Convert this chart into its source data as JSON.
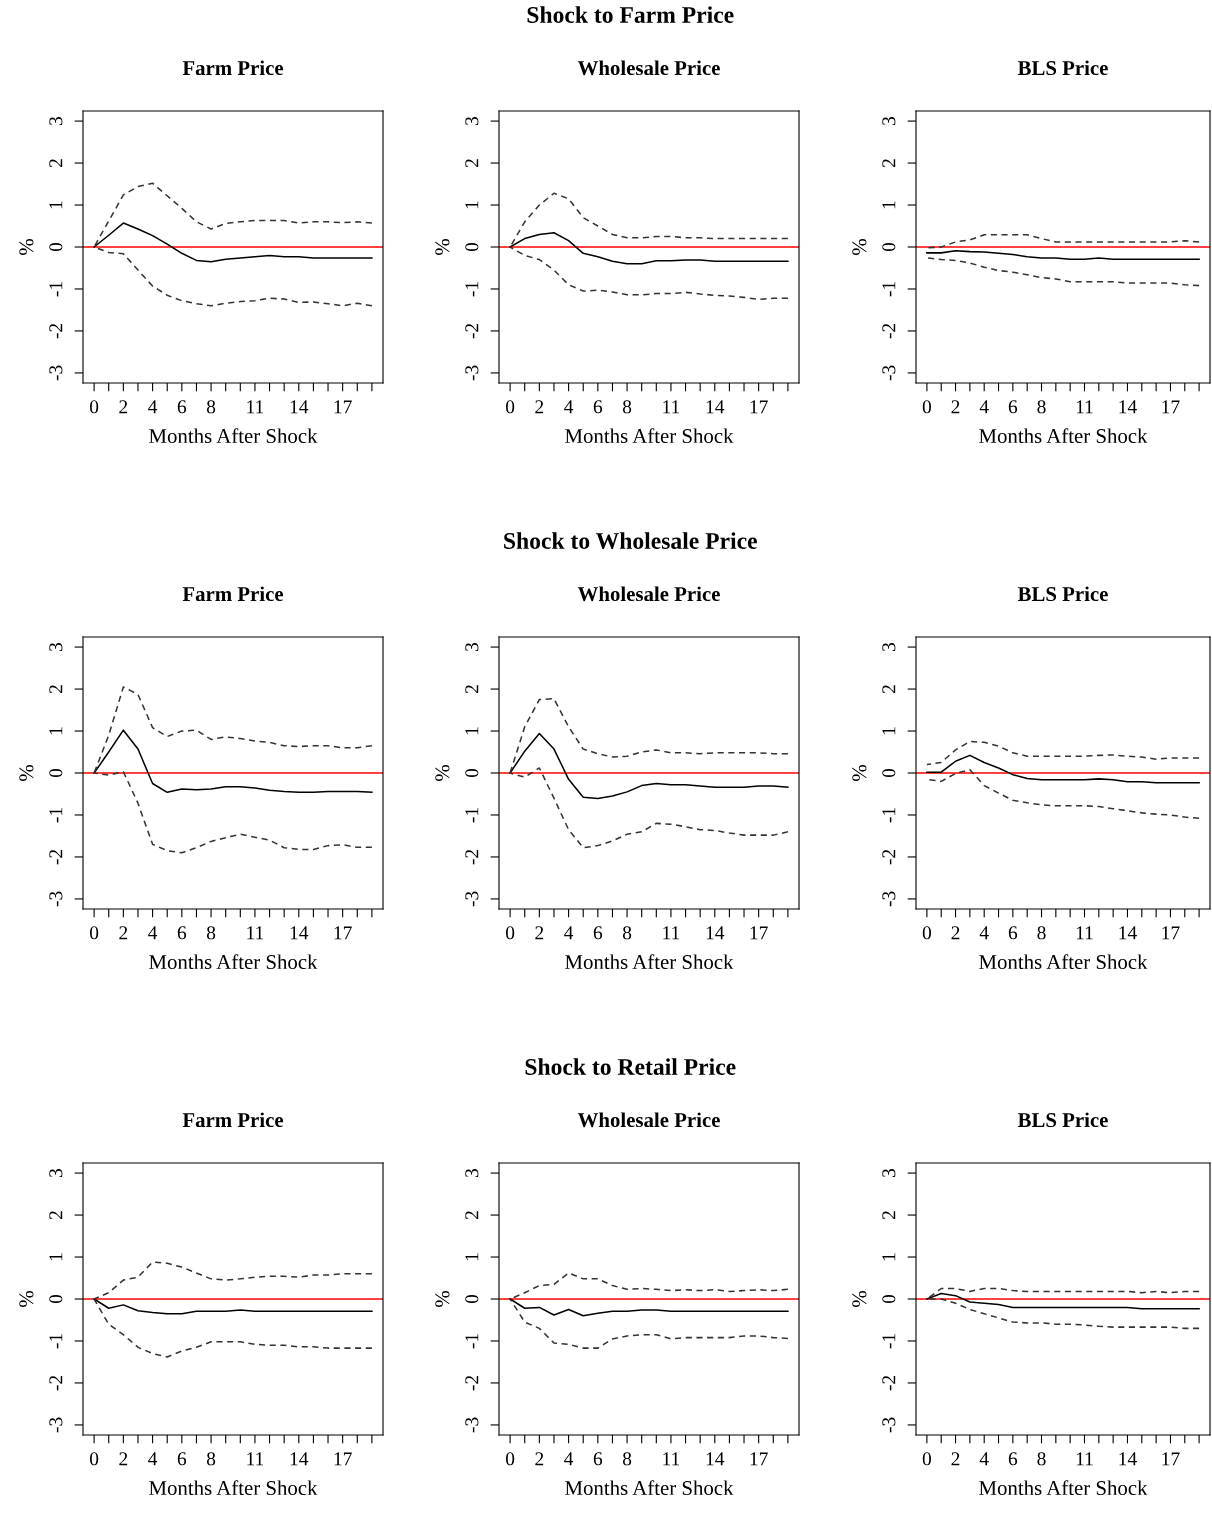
{
  "chart_data": [
    {
      "type": "line",
      "annotations": [
        "Shock to Farm Price"
      ],
      "title": "Farm Price",
      "xlabel": "Months After Shock",
      "ylabel": "%",
      "x": [
        0,
        1,
        2,
        3,
        4,
        5,
        6,
        7,
        8,
        9,
        10,
        11,
        12,
        13,
        14,
        15,
        16,
        17,
        18,
        19
      ],
      "xlim": [
        -0.76,
        19.76
      ],
      "ylim": [
        -3.24,
        3.24
      ],
      "xticks": [
        0,
        {
          "value": 1,
          "label": null
        },
        2,
        {
          "value": 3,
          "label": null
        },
        4,
        {
          "value": 5,
          "label": null
        },
        6,
        {
          "value": 7,
          "label": null
        },
        8,
        {
          "value": 9,
          "label": null
        },
        {
          "value": 10,
          "label": null
        },
        11,
        {
          "value": 12,
          "label": null
        },
        {
          "value": 13,
          "label": null
        },
        14,
        {
          "value": 15,
          "label": null
        },
        {
          "value": 16,
          "label": null
        },
        17,
        {
          "value": 18,
          "label": null
        },
        {
          "value": 19,
          "label": null
        }
      ],
      "yticks": [
        -3,
        -2,
        -1,
        0,
        1,
        2,
        3
      ],
      "ref_lines": [
        {
          "axis": "y",
          "value": 0,
          "color": "#ff0000"
        }
      ],
      "line_style": "solid",
      "series": [
        {
          "color": "#000000",
          "values": [
            0,
            0.28,
            0.57,
            0.43,
            0.27,
            0.07,
            -0.15,
            -0.32,
            -0.35,
            -0.29,
            -0.26,
            -0.23,
            -0.2,
            -0.23,
            -0.23,
            -0.26,
            -0.26,
            -0.26,
            -0.26,
            -0.26
          ]
        },
        {
          "color": "#333333",
          "line_style": "dashed",
          "values": [
            0,
            -0.13,
            -0.16,
            -0.55,
            -0.93,
            -1.15,
            -1.28,
            -1.35,
            -1.4,
            -1.34,
            -1.3,
            -1.28,
            -1.22,
            -1.24,
            -1.32,
            -1.31,
            -1.35,
            -1.4,
            -1.34,
            -1.4
          ]
        },
        {
          "color": "#333333",
          "line_style": "dashed",
          "values": [
            0,
            0.62,
            1.24,
            1.44,
            1.52,
            1.22,
            0.92,
            0.6,
            0.43,
            0.56,
            0.6,
            0.63,
            0.63,
            0.63,
            0.57,
            0.6,
            0.6,
            0.58,
            0.6,
            0.57
          ]
        }
      ]
    },
    {
      "type": "line",
      "title": "Wholesale Price",
      "xlabel": "Months After Shock",
      "ylabel": "%",
      "x": [
        0,
        1,
        2,
        3,
        4,
        5,
        6,
        7,
        8,
        9,
        10,
        11,
        12,
        13,
        14,
        15,
        16,
        17,
        18,
        19
      ],
      "xlim": [
        -0.76,
        19.76
      ],
      "ylim": [
        -3.24,
        3.24
      ],
      "xticks": [
        0,
        {
          "value": 1,
          "label": null
        },
        2,
        {
          "value": 3,
          "label": null
        },
        4,
        {
          "value": 5,
          "label": null
        },
        6,
        {
          "value": 7,
          "label": null
        },
        8,
        {
          "value": 9,
          "label": null
        },
        {
          "value": 10,
          "label": null
        },
        11,
        {
          "value": 12,
          "label": null
        },
        {
          "value": 13,
          "label": null
        },
        14,
        {
          "value": 15,
          "label": null
        },
        {
          "value": 16,
          "label": null
        },
        17,
        {
          "value": 18,
          "label": null
        },
        {
          "value": 19,
          "label": null
        }
      ],
      "yticks": [
        -3,
        -2,
        -1,
        0,
        1,
        2,
        3
      ],
      "ref_lines": [
        {
          "axis": "y",
          "value": 0,
          "color": "#ff0000"
        }
      ],
      "line_style": "solid",
      "series": [
        {
          "color": "#000000",
          "values": [
            0,
            0.2,
            0.3,
            0.34,
            0.15,
            -0.15,
            -0.23,
            -0.34,
            -0.4,
            -0.4,
            -0.33,
            -0.33,
            -0.31,
            -0.31,
            -0.34,
            -0.34,
            -0.34,
            -0.34,
            -0.34,
            -0.34
          ]
        },
        {
          "color": "#333333",
          "line_style": "dashed",
          "values": [
            0,
            -0.2,
            -0.3,
            -0.55,
            -0.9,
            -1.05,
            -1.03,
            -1.07,
            -1.14,
            -1.14,
            -1.11,
            -1.11,
            -1.08,
            -1.12,
            -1.15,
            -1.17,
            -1.2,
            -1.25,
            -1.22,
            -1.22
          ]
        },
        {
          "color": "#333333",
          "line_style": "dashed",
          "values": [
            0,
            0.6,
            1.0,
            1.28,
            1.15,
            0.7,
            0.5,
            0.3,
            0.22,
            0.22,
            0.25,
            0.25,
            0.22,
            0.22,
            0.2,
            0.2,
            0.2,
            0.2,
            0.2,
            0.2
          ]
        }
      ]
    },
    {
      "type": "line",
      "title": "BLS Price",
      "xlabel": "Months After Shock",
      "ylabel": "%",
      "x": [
        0,
        1,
        2,
        3,
        4,
        5,
        6,
        7,
        8,
        9,
        10,
        11,
        12,
        13,
        14,
        15,
        16,
        17,
        18,
        19
      ],
      "xlim": [
        -0.76,
        19.76
      ],
      "ylim": [
        -3.24,
        3.24
      ],
      "xticks": [
        0,
        {
          "value": 1,
          "label": null
        },
        2,
        {
          "value": 3,
          "label": null
        },
        4,
        {
          "value": 5,
          "label": null
        },
        6,
        {
          "value": 7,
          "label": null
        },
        8,
        {
          "value": 9,
          "label": null
        },
        {
          "value": 10,
          "label": null
        },
        11,
        {
          "value": 12,
          "label": null
        },
        {
          "value": 13,
          "label": null
        },
        14,
        {
          "value": 15,
          "label": null
        },
        {
          "value": 16,
          "label": null
        },
        17,
        {
          "value": 18,
          "label": null
        },
        {
          "value": 19,
          "label": null
        }
      ],
      "yticks": [
        -3,
        -2,
        -1,
        0,
        1,
        2,
        3
      ],
      "ref_lines": [
        {
          "axis": "y",
          "value": 0,
          "color": "#ff0000"
        }
      ],
      "line_style": "solid",
      "series": [
        {
          "color": "#000000",
          "values": [
            -0.14,
            -0.14,
            -0.09,
            -0.11,
            -0.12,
            -0.15,
            -0.18,
            -0.23,
            -0.26,
            -0.26,
            -0.29,
            -0.29,
            -0.26,
            -0.29,
            -0.29,
            -0.29,
            -0.29,
            -0.29,
            -0.29,
            -0.29
          ]
        },
        {
          "color": "#333333",
          "line_style": "dashed",
          "values": [
            -0.26,
            -0.3,
            -0.32,
            -0.38,
            -0.48,
            -0.56,
            -0.6,
            -0.66,
            -0.73,
            -0.76,
            -0.83,
            -0.83,
            -0.83,
            -0.83,
            -0.86,
            -0.86,
            -0.86,
            -0.86,
            -0.9,
            -0.92
          ]
        },
        {
          "color": "#333333",
          "line_style": "dashed",
          "values": [
            -0.02,
            0,
            0.12,
            0.17,
            0.29,
            0.29,
            0.29,
            0.29,
            0.2,
            0.12,
            0.12,
            0.12,
            0.12,
            0.12,
            0.12,
            0.12,
            0.12,
            0.12,
            0.15,
            0.12
          ]
        }
      ]
    },
    {
      "type": "line",
      "annotations": [
        "Shock to Wholesale Price"
      ],
      "title": "Farm Price",
      "xlabel": "Months After Shock",
      "ylabel": "%",
      "x": [
        0,
        1,
        2,
        3,
        4,
        5,
        6,
        7,
        8,
        9,
        10,
        11,
        12,
        13,
        14,
        15,
        16,
        17,
        18,
        19
      ],
      "xlim": [
        -0.76,
        19.76
      ],
      "ylim": [
        -3.24,
        3.24
      ],
      "xticks": [
        0,
        {
          "value": 1,
          "label": null
        },
        2,
        {
          "value": 3,
          "label": null
        },
        4,
        {
          "value": 5,
          "label": null
        },
        6,
        {
          "value": 7,
          "label": null
        },
        8,
        {
          "value": 9,
          "label": null
        },
        {
          "value": 10,
          "label": null
        },
        11,
        {
          "value": 12,
          "label": null
        },
        {
          "value": 13,
          "label": null
        },
        14,
        {
          "value": 15,
          "label": null
        },
        {
          "value": 16,
          "label": null
        },
        17,
        {
          "value": 18,
          "label": null
        },
        {
          "value": 19,
          "label": null
        }
      ],
      "yticks": [
        -3,
        -2,
        -1,
        0,
        1,
        2,
        3
      ],
      "ref_lines": [
        {
          "axis": "y",
          "value": 0,
          "color": "#ff0000"
        }
      ],
      "line_style": "solid",
      "series": [
        {
          "color": "#000000",
          "values": [
            0,
            0.5,
            1.02,
            0.57,
            -0.25,
            -0.46,
            -0.38,
            -0.4,
            -0.38,
            -0.33,
            -0.33,
            -0.36,
            -0.41,
            -0.44,
            -0.46,
            -0.46,
            -0.44,
            -0.44,
            -0.44,
            -0.46
          ]
        },
        {
          "color": "#333333",
          "line_style": "dashed",
          "values": [
            0,
            -0.05,
            0.03,
            -0.72,
            -1.7,
            -1.85,
            -1.9,
            -1.78,
            -1.63,
            -1.54,
            -1.46,
            -1.53,
            -1.6,
            -1.78,
            -1.82,
            -1.82,
            -1.73,
            -1.71,
            -1.77,
            -1.77
          ]
        },
        {
          "color": "#333333",
          "line_style": "dashed",
          "values": [
            0,
            0.9,
            2.05,
            1.87,
            1.08,
            0.87,
            1.0,
            1.02,
            0.8,
            0.86,
            0.82,
            0.76,
            0.73,
            0.65,
            0.63,
            0.65,
            0.65,
            0.6,
            0.6,
            0.65
          ]
        }
      ]
    },
    {
      "type": "line",
      "title": "Wholesale Price",
      "xlabel": "Months After Shock",
      "ylabel": "%",
      "x": [
        0,
        1,
        2,
        3,
        4,
        5,
        6,
        7,
        8,
        9,
        10,
        11,
        12,
        13,
        14,
        15,
        16,
        17,
        18,
        19
      ],
      "xlim": [
        -0.76,
        19.76
      ],
      "ylim": [
        -3.24,
        3.24
      ],
      "xticks": [
        0,
        {
          "value": 1,
          "label": null
        },
        2,
        {
          "value": 3,
          "label": null
        },
        4,
        {
          "value": 5,
          "label": null
        },
        6,
        {
          "value": 7,
          "label": null
        },
        8,
        {
          "value": 9,
          "label": null
        },
        {
          "value": 10,
          "label": null
        },
        11,
        {
          "value": 12,
          "label": null
        },
        {
          "value": 13,
          "label": null
        },
        14,
        {
          "value": 15,
          "label": null
        },
        {
          "value": 16,
          "label": null
        },
        17,
        {
          "value": 18,
          "label": null
        },
        {
          "value": 19,
          "label": null
        }
      ],
      "yticks": [
        -3,
        -2,
        -1,
        0,
        1,
        2,
        3
      ],
      "ref_lines": [
        {
          "axis": "y",
          "value": 0,
          "color": "#ff0000"
        }
      ],
      "line_style": "solid",
      "series": [
        {
          "color": "#000000",
          "values": [
            0,
            0.52,
            0.94,
            0.57,
            -0.15,
            -0.58,
            -0.61,
            -0.55,
            -0.45,
            -0.3,
            -0.25,
            -0.28,
            -0.28,
            -0.31,
            -0.34,
            -0.34,
            -0.34,
            -0.31,
            -0.31,
            -0.34
          ]
        },
        {
          "color": "#333333",
          "line_style": "dashed",
          "values": [
            0,
            -0.1,
            0.12,
            -0.6,
            -1.35,
            -1.78,
            -1.73,
            -1.62,
            -1.46,
            -1.4,
            -1.2,
            -1.22,
            -1.28,
            -1.35,
            -1.37,
            -1.43,
            -1.48,
            -1.48,
            -1.48,
            -1.4
          ]
        },
        {
          "color": "#333333",
          "line_style": "dashed",
          "values": [
            0,
            1.1,
            1.75,
            1.77,
            1.1,
            0.57,
            0.46,
            0.38,
            0.4,
            0.5,
            0.55,
            0.48,
            0.48,
            0.46,
            0.48,
            0.48,
            0.48,
            0.48,
            0.46,
            0.46
          ]
        }
      ]
    },
    {
      "type": "line",
      "title": "BLS Price",
      "xlabel": "Months After Shock",
      "ylabel": "%",
      "x": [
        0,
        1,
        2,
        3,
        4,
        5,
        6,
        7,
        8,
        9,
        10,
        11,
        12,
        13,
        14,
        15,
        16,
        17,
        18,
        19
      ],
      "xlim": [
        -0.76,
        19.76
      ],
      "ylim": [
        -3.24,
        3.24
      ],
      "xticks": [
        0,
        {
          "value": 1,
          "label": null
        },
        2,
        {
          "value": 3,
          "label": null
        },
        4,
        {
          "value": 5,
          "label": null
        },
        6,
        {
          "value": 7,
          "label": null
        },
        8,
        {
          "value": 9,
          "label": null
        },
        {
          "value": 10,
          "label": null
        },
        11,
        {
          "value": 12,
          "label": null
        },
        {
          "value": 13,
          "label": null
        },
        14,
        {
          "value": 15,
          "label": null
        },
        {
          "value": 16,
          "label": null
        },
        17,
        {
          "value": 18,
          "label": null
        },
        {
          "value": 19,
          "label": null
        }
      ],
      "yticks": [
        -3,
        -2,
        -1,
        0,
        1,
        2,
        3
      ],
      "ref_lines": [
        {
          "axis": "y",
          "value": 0,
          "color": "#ff0000"
        }
      ],
      "line_style": "solid",
      "series": [
        {
          "color": "#000000",
          "values": [
            0.02,
            0.02,
            0.28,
            0.42,
            0.25,
            0.12,
            -0.04,
            -0.13,
            -0.16,
            -0.16,
            -0.16,
            -0.16,
            -0.14,
            -0.16,
            -0.21,
            -0.21,
            -0.23,
            -0.23,
            -0.23,
            -0.23
          ]
        },
        {
          "color": "#333333",
          "line_style": "dashed",
          "values": [
            -0.15,
            -0.2,
            -0.01,
            0.08,
            -0.3,
            -0.48,
            -0.65,
            -0.71,
            -0.76,
            -0.78,
            -0.78,
            -0.78,
            -0.8,
            -0.85,
            -0.9,
            -0.95,
            -0.98,
            -1.0,
            -1.05,
            -1.08
          ]
        },
        {
          "color": "#333333",
          "line_style": "dashed",
          "values": [
            0.2,
            0.25,
            0.55,
            0.75,
            0.73,
            0.64,
            0.48,
            0.4,
            0.4,
            0.4,
            0.4,
            0.4,
            0.42,
            0.43,
            0.4,
            0.38,
            0.33,
            0.36,
            0.36,
            0.36
          ]
        }
      ]
    },
    {
      "type": "line",
      "annotations": [
        "Shock to Retail Price"
      ],
      "title": "Farm Price",
      "xlabel": "Months After Shock",
      "ylabel": "%",
      "x": [
        0,
        1,
        2,
        3,
        4,
        5,
        6,
        7,
        8,
        9,
        10,
        11,
        12,
        13,
        14,
        15,
        16,
        17,
        18,
        19
      ],
      "xlim": [
        -0.76,
        19.76
      ],
      "ylim": [
        -3.24,
        3.24
      ],
      "xticks": [
        0,
        {
          "value": 1,
          "label": null
        },
        2,
        {
          "value": 3,
          "label": null
        },
        4,
        {
          "value": 5,
          "label": null
        },
        6,
        {
          "value": 7,
          "label": null
        },
        8,
        {
          "value": 9,
          "label": null
        },
        {
          "value": 10,
          "label": null
        },
        11,
        {
          "value": 12,
          "label": null
        },
        {
          "value": 13,
          "label": null
        },
        14,
        {
          "value": 15,
          "label": null
        },
        {
          "value": 16,
          "label": null
        },
        17,
        {
          "value": 18,
          "label": null
        },
        {
          "value": 19,
          "label": null
        }
      ],
      "yticks": [
        -3,
        -2,
        -1,
        0,
        1,
        2,
        3
      ],
      "ref_lines": [
        {
          "axis": "y",
          "value": 0,
          "color": "#ff0000"
        }
      ],
      "line_style": "solid",
      "series": [
        {
          "color": "#000000",
          "values": [
            0,
            -0.22,
            -0.14,
            -0.28,
            -0.32,
            -0.35,
            -0.35,
            -0.29,
            -0.29,
            -0.29,
            -0.26,
            -0.29,
            -0.29,
            -0.29,
            -0.29,
            -0.29,
            -0.29,
            -0.29,
            -0.29,
            -0.29
          ]
        },
        {
          "color": "#333333",
          "line_style": "dashed",
          "values": [
            0,
            -0.6,
            -0.85,
            -1.15,
            -1.3,
            -1.38,
            -1.24,
            -1.15,
            -1.02,
            -1.02,
            -1.02,
            -1.08,
            -1.1,
            -1.1,
            -1.14,
            -1.14,
            -1.17,
            -1.17,
            -1.17,
            -1.17
          ]
        },
        {
          "color": "#333333",
          "line_style": "dashed",
          "values": [
            0,
            0.15,
            0.45,
            0.52,
            0.88,
            0.85,
            0.76,
            0.62,
            0.48,
            0.45,
            0.48,
            0.52,
            0.54,
            0.54,
            0.52,
            0.57,
            0.57,
            0.6,
            0.6,
            0.6
          ]
        }
      ]
    },
    {
      "type": "line",
      "title": "Wholesale Price",
      "xlabel": "Months After Shock",
      "ylabel": "%",
      "x": [
        0,
        1,
        2,
        3,
        4,
        5,
        6,
        7,
        8,
        9,
        10,
        11,
        12,
        13,
        14,
        15,
        16,
        17,
        18,
        19
      ],
      "xlim": [
        -0.76,
        19.76
      ],
      "ylim": [
        -3.24,
        3.24
      ],
      "xticks": [
        0,
        {
          "value": 1,
          "label": null
        },
        2,
        {
          "value": 3,
          "label": null
        },
        4,
        {
          "value": 5,
          "label": null
        },
        6,
        {
          "value": 7,
          "label": null
        },
        8,
        {
          "value": 9,
          "label": null
        },
        {
          "value": 10,
          "label": null
        },
        11,
        {
          "value": 12,
          "label": null
        },
        {
          "value": 13,
          "label": null
        },
        14,
        {
          "value": 15,
          "label": null
        },
        {
          "value": 16,
          "label": null
        },
        17,
        {
          "value": 18,
          "label": null
        },
        {
          "value": 19,
          "label": null
        }
      ],
      "yticks": [
        -3,
        -2,
        -1,
        0,
        1,
        2,
        3
      ],
      "ref_lines": [
        {
          "axis": "y",
          "value": 0,
          "color": "#ff0000"
        }
      ],
      "line_style": "solid",
      "series": [
        {
          "color": "#000000",
          "values": [
            0,
            -0.22,
            -0.2,
            -0.38,
            -0.25,
            -0.4,
            -0.34,
            -0.29,
            -0.29,
            -0.26,
            -0.26,
            -0.29,
            -0.29,
            -0.29,
            -0.29,
            -0.29,
            -0.29,
            -0.29,
            -0.29,
            -0.29
          ]
        },
        {
          "color": "#333333",
          "line_style": "dashed",
          "values": [
            0,
            -0.55,
            -0.7,
            -1.05,
            -1.08,
            -1.17,
            -1.17,
            -0.95,
            -0.88,
            -0.85,
            -0.85,
            -0.95,
            -0.92,
            -0.92,
            -0.92,
            -0.92,
            -0.88,
            -0.88,
            -0.92,
            -0.94
          ]
        },
        {
          "color": "#333333",
          "line_style": "dashed",
          "values": [
            0,
            0.15,
            0.32,
            0.35,
            0.62,
            0.48,
            0.48,
            0.32,
            0.23,
            0.25,
            0.23,
            0.2,
            0.22,
            0.2,
            0.22,
            0.18,
            0.2,
            0.22,
            0.2,
            0.23
          ]
        }
      ]
    },
    {
      "type": "line",
      "title": "BLS Price",
      "xlabel": "Months After Shock",
      "ylabel": "%",
      "x": [
        0,
        1,
        2,
        3,
        4,
        5,
        6,
        7,
        8,
        9,
        10,
        11,
        12,
        13,
        14,
        15,
        16,
        17,
        18,
        19
      ],
      "xlim": [
        -0.76,
        19.76
      ],
      "ylim": [
        -3.24,
        3.24
      ],
      "xticks": [
        0,
        {
          "value": 1,
          "label": null
        },
        2,
        {
          "value": 3,
          "label": null
        },
        4,
        {
          "value": 5,
          "label": null
        },
        6,
        {
          "value": 7,
          "label": null
        },
        8,
        {
          "value": 9,
          "label": null
        },
        {
          "value": 10,
          "label": null
        },
        11,
        {
          "value": 12,
          "label": null
        },
        {
          "value": 13,
          "label": null
        },
        14,
        {
          "value": 15,
          "label": null
        },
        {
          "value": 16,
          "label": null
        },
        17,
        {
          "value": 18,
          "label": null
        },
        {
          "value": 19,
          "label": null
        }
      ],
      "yticks": [
        -3,
        -2,
        -1,
        0,
        1,
        2,
        3
      ],
      "ref_lines": [
        {
          "axis": "y",
          "value": 0,
          "color": "#ff0000"
        }
      ],
      "line_style": "solid",
      "series": [
        {
          "color": "#000000",
          "values": [
            0,
            0.13,
            0.08,
            -0.07,
            -0.1,
            -0.13,
            -0.2,
            -0.2,
            -0.2,
            -0.2,
            -0.2,
            -0.2,
            -0.2,
            -0.2,
            -0.2,
            -0.23,
            -0.23,
            -0.23,
            -0.23,
            -0.23
          ]
        },
        {
          "color": "#333333",
          "line_style": "dashed",
          "values": [
            0,
            0,
            -0.1,
            -0.25,
            -0.35,
            -0.45,
            -0.55,
            -0.57,
            -0.57,
            -0.6,
            -0.6,
            -0.62,
            -0.65,
            -0.67,
            -0.67,
            -0.67,
            -0.67,
            -0.67,
            -0.7,
            -0.7
          ]
        },
        {
          "color": "#333333",
          "line_style": "dashed",
          "values": [
            0,
            0.25,
            0.25,
            0.18,
            0.25,
            0.25,
            0.2,
            0.18,
            0.18,
            0.18,
            0.18,
            0.18,
            0.18,
            0.18,
            0.18,
            0.15,
            0.18,
            0.15,
            0.18,
            0.18
          ]
        }
      ]
    }
  ]
}
